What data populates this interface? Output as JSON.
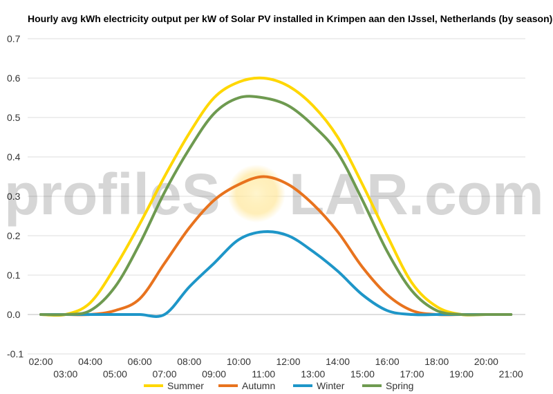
{
  "chart_data": {
    "type": "line",
    "title": "Hourly avg kWh electricity output per kW of Solar PV installed in Krimpen aan den IJssel, Netherlands (by season)",
    "xlabel": "",
    "ylabel": "",
    "x": [
      "02:00",
      "03:00",
      "04:00",
      "05:00",
      "06:00",
      "07:00",
      "08:00",
      "09:00",
      "10:00",
      "11:00",
      "12:00",
      "13:00",
      "14:00",
      "15:00",
      "16:00",
      "17:00",
      "18:00",
      "19:00",
      "20:00",
      "21:00"
    ],
    "x_hours": [
      2,
      3,
      4,
      5,
      6,
      7,
      8,
      9,
      10,
      11,
      12,
      13,
      14,
      15,
      16,
      17,
      18,
      19,
      20,
      21
    ],
    "ylim": [
      -0.1,
      0.7
    ],
    "yticks": [
      -0.1,
      0.0,
      0.1,
      0.2,
      0.3,
      0.4,
      0.5,
      0.6,
      0.7
    ],
    "ytick_labels": [
      "-0.1",
      "0.0",
      "0.1",
      "0.2",
      "0.3",
      "0.4",
      "0.5",
      "0.6",
      "0.7"
    ],
    "grid": true,
    "legend_position": "bottom",
    "series": [
      {
        "name": "Summer",
        "color": "#ffd700",
        "values": [
          0.0,
          0.0,
          0.03,
          0.12,
          0.23,
          0.35,
          0.46,
          0.55,
          0.59,
          0.6,
          0.58,
          0.53,
          0.45,
          0.33,
          0.2,
          0.08,
          0.02,
          0.0,
          0.0,
          0.0
        ]
      },
      {
        "name": "Autumn",
        "color": "#e8731e",
        "values": [
          0.0,
          0.0,
          0.0,
          0.01,
          0.04,
          0.13,
          0.22,
          0.29,
          0.33,
          0.35,
          0.33,
          0.28,
          0.21,
          0.12,
          0.05,
          0.01,
          0.0,
          0.0,
          0.0,
          0.0
        ]
      },
      {
        "name": "Winter",
        "color": "#1e96c8",
        "values": [
          0.0,
          0.0,
          0.0,
          0.0,
          0.0,
          0.0,
          0.07,
          0.13,
          0.19,
          0.21,
          0.2,
          0.16,
          0.11,
          0.05,
          0.01,
          0.0,
          0.0,
          0.0,
          0.0,
          0.0
        ]
      },
      {
        "name": "Spring",
        "color": "#6e9a50",
        "values": [
          0.0,
          0.0,
          0.01,
          0.07,
          0.18,
          0.31,
          0.42,
          0.51,
          0.55,
          0.55,
          0.53,
          0.48,
          0.41,
          0.29,
          0.16,
          0.06,
          0.01,
          0.0,
          0.0,
          0.0
        ]
      }
    ]
  },
  "watermark": {
    "text_a": "profileS",
    "text_b": "LAR.com",
    "sun_color": "#ffe38a"
  }
}
